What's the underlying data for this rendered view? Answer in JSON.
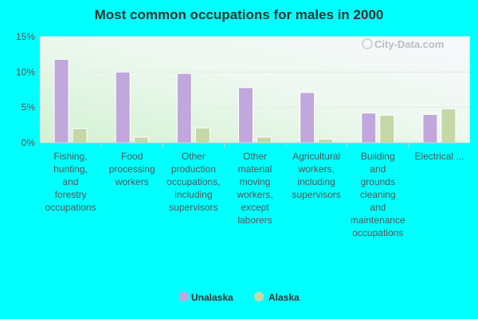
{
  "chart_data": {
    "type": "bar",
    "title": "Most common occupations for males in 2000",
    "categories": [
      [
        "Fishing,",
        "hunting,",
        "and",
        "forestry",
        "occupations"
      ],
      [
        "Food",
        "processing",
        "workers"
      ],
      [
        "Other",
        "production",
        "occupations,",
        "including",
        "supervisors"
      ],
      [
        "Other",
        "material",
        "moving",
        "workers,",
        "except",
        "laborers"
      ],
      [
        "Agricultural",
        "workers,",
        "including",
        "supervisors"
      ],
      [
        "Building",
        "and",
        "grounds",
        "cleaning",
        "and",
        "maintenance",
        "occupations"
      ],
      [
        "Electrical ..."
      ]
    ],
    "series": [
      {
        "name": "Unalaska",
        "color": "#c0a8dc",
        "values": [
          11.8,
          10.0,
          9.8,
          7.8,
          7.1,
          4.2,
          4.0
        ]
      },
      {
        "name": "Alaska",
        "color": "#c4d8a8",
        "values": [
          2.0,
          0.8,
          2.1,
          0.8,
          0.5,
          3.9,
          4.8
        ]
      }
    ],
    "yticks": [
      "0%",
      "5%",
      "10%",
      "15%"
    ],
    "ylim": [
      0,
      15
    ],
    "xlabel": "",
    "ylabel": "",
    "grid": true,
    "legend_position": "bottom-center",
    "watermark": "City-Data.com"
  }
}
